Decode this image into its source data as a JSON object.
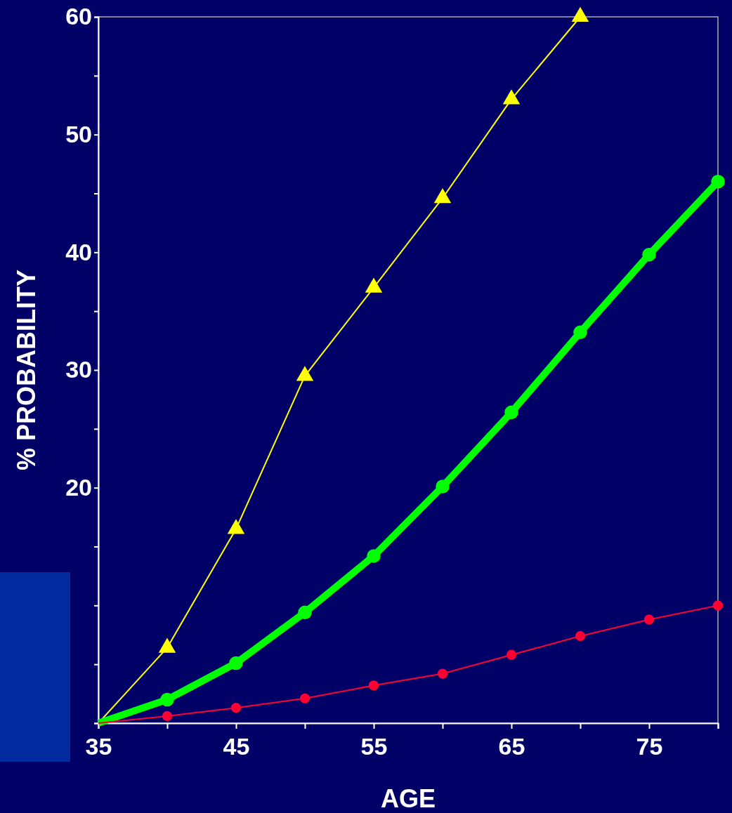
{
  "chart_data": {
    "type": "line",
    "xlabel": "AGE",
    "ylabel": "% PROBABILITY",
    "x": [
      35,
      40,
      45,
      50,
      55,
      60,
      65,
      70,
      75,
      80
    ],
    "series": [
      {
        "color": "#ffff00",
        "marker": "triangle",
        "values": [
          0,
          6.4,
          16.5,
          29.5,
          37,
          44.6,
          53,
          60,
          null,
          null
        ]
      },
      {
        "color": "#00ff00",
        "marker": "circle",
        "values": [
          0,
          2,
          5.1,
          9.4,
          14.2,
          20.1,
          26.4,
          33.2,
          39.8,
          46
        ]
      },
      {
        "color": "#ff0033",
        "marker": "circle",
        "values": [
          0,
          0.6,
          1.3,
          2.1,
          3.2,
          4.2,
          5.8,
          7.4,
          8.8,
          10
        ]
      }
    ],
    "xlim": [
      35,
      80
    ],
    "ylim": [
      0,
      60
    ],
    "xticks": [
      35,
      {
        "value": 40,
        "label": null
      },
      45,
      {
        "value": 50,
        "label": null
      },
      55,
      {
        "value": 60,
        "label": null
      },
      65,
      {
        "value": 70,
        "label": null
      },
      75,
      {
        "value": 80,
        "label": null
      }
    ],
    "yticks": [
      {
        "value": 0,
        "label": null
      },
      {
        "value": 5,
        "label": null
      },
      {
        "value": 10,
        "label": null
      },
      {
        "value": 15,
        "label": null
      },
      20,
      {
        "value": 25,
        "label": null
      },
      30,
      {
        "value": 35,
        "label": null
      },
      40,
      {
        "value": 45,
        "label": null
      },
      50,
      {
        "value": 55,
        "label": null
      },
      60
    ],
    "grid": false
  }
}
